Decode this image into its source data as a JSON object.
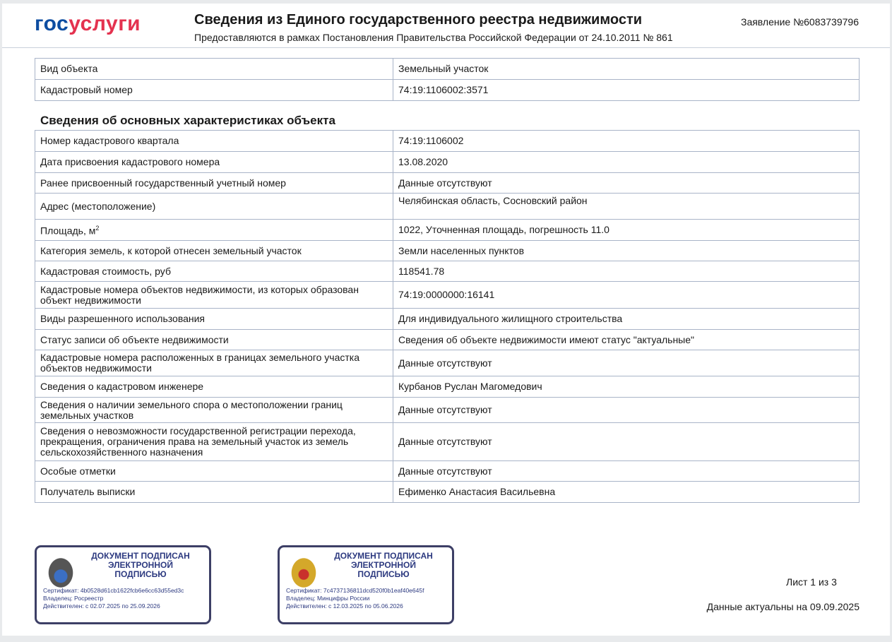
{
  "header": {
    "logo": {
      "part1": "гос",
      "part2": "услуги"
    },
    "title": "Сведения из Единого государственного реестра недвижимости",
    "subtitle": "Предоставляются в рамках Постановления Правительства Российской Федерации от 24.10.2011 № 861",
    "application_number": "Заявление №6083739796"
  },
  "object_table": [
    {
      "label": "Вид объекта",
      "value": "Земельный участок"
    },
    {
      "label": "Кадастровый номер",
      "value": "74:19:1106002:3571"
    }
  ],
  "section_title": "Сведения об основных характеристиках объекта",
  "characteristics": [
    {
      "label": "Номер кадастрового квартала",
      "value": "74:19:1106002"
    },
    {
      "label": "Дата присвоения кадастрового номера",
      "value": "13.08.2020"
    },
    {
      "label": "Ранее присвоенный государственный учетный номер",
      "value": "Данные отсутствуют"
    },
    {
      "label": "Адрес (местоположение)",
      "value": "Челябинская область, Сосновский район"
    },
    {
      "label": "Площадь, м",
      "label_sup": "2",
      "value": "1022, Уточненная площадь, погрешность 11.0"
    },
    {
      "label": "Категория земель, к которой отнесен земельный участок",
      "value": "Земли населенных пунктов"
    },
    {
      "label": "Кадастровая стоимость, руб",
      "value": "118541.78"
    },
    {
      "label": "Кадастровые номера объектов недвижимости, из которых образован объект недвижимости",
      "value": "74:19:0000000:16141"
    },
    {
      "label": "Виды разрешенного использования",
      "value": "Для индивидуального жилищного строительства"
    },
    {
      "label": "Статус записи об объекте недвижимости",
      "value": "Сведения об объекте недвижимости имеют статус \"актуальные\""
    },
    {
      "label": "Кадастровые номера расположенных в границах земельного участка объектов недвижимости",
      "value": "Данные отсутствуют"
    },
    {
      "label": "Сведения о кадастровом инженере",
      "value": "Курбанов Руслан Магомедович"
    },
    {
      "label": "Сведения о наличии земельного спора о местоположении границ земельных участков",
      "value": "Данные отсутствуют"
    },
    {
      "label": "Сведения о невозможности государственной регистрации перехода, прекращения, ограничения права на земельный участок из земель сельскохозяйственного назначения",
      "value": "Данные отсутствуют"
    },
    {
      "label": "Особые отметки",
      "value": "Данные отсутствуют"
    },
    {
      "label": "Получатель выписки",
      "value": "Ефименко Анастасия Васильевна"
    }
  ],
  "stamps": [
    {
      "heading": "ДОКУМЕНТ ПОДПИСАН\nЭЛЕКТРОННОЙ\nПОДПИСЬЮ",
      "certificate": "Сертификат: 4b0528d61cb1622fcb6e6cc63d55ed3c",
      "owner": "Владелец: Росреестр",
      "valid": "Действителен: с 02.07.2025 по 25.09.2026",
      "emblem": "rosreestr-emblem"
    },
    {
      "heading": "ДОКУМЕНТ ПОДПИСАН\nЭЛЕКТРОННОЙ\nПОДПИСЬЮ",
      "certificate": "Сертификат: 7c4737136811dcd520f0b1eaf40e645f",
      "owner": "Владелец: Минцифры России",
      "valid": "Действителен: с 12.03.2025 по 05.06.2026",
      "emblem": "russia-coat-of-arms"
    }
  ],
  "footer": {
    "sheet": "Лист 1 из 3",
    "actual_date": "Данные актуальны на 09.09.2025"
  },
  "colors": {
    "logo_blue": "#0d4da1",
    "logo_red": "#e4324f",
    "stamp_border": "#3d3f66",
    "table_border": "#a9b4c8"
  }
}
